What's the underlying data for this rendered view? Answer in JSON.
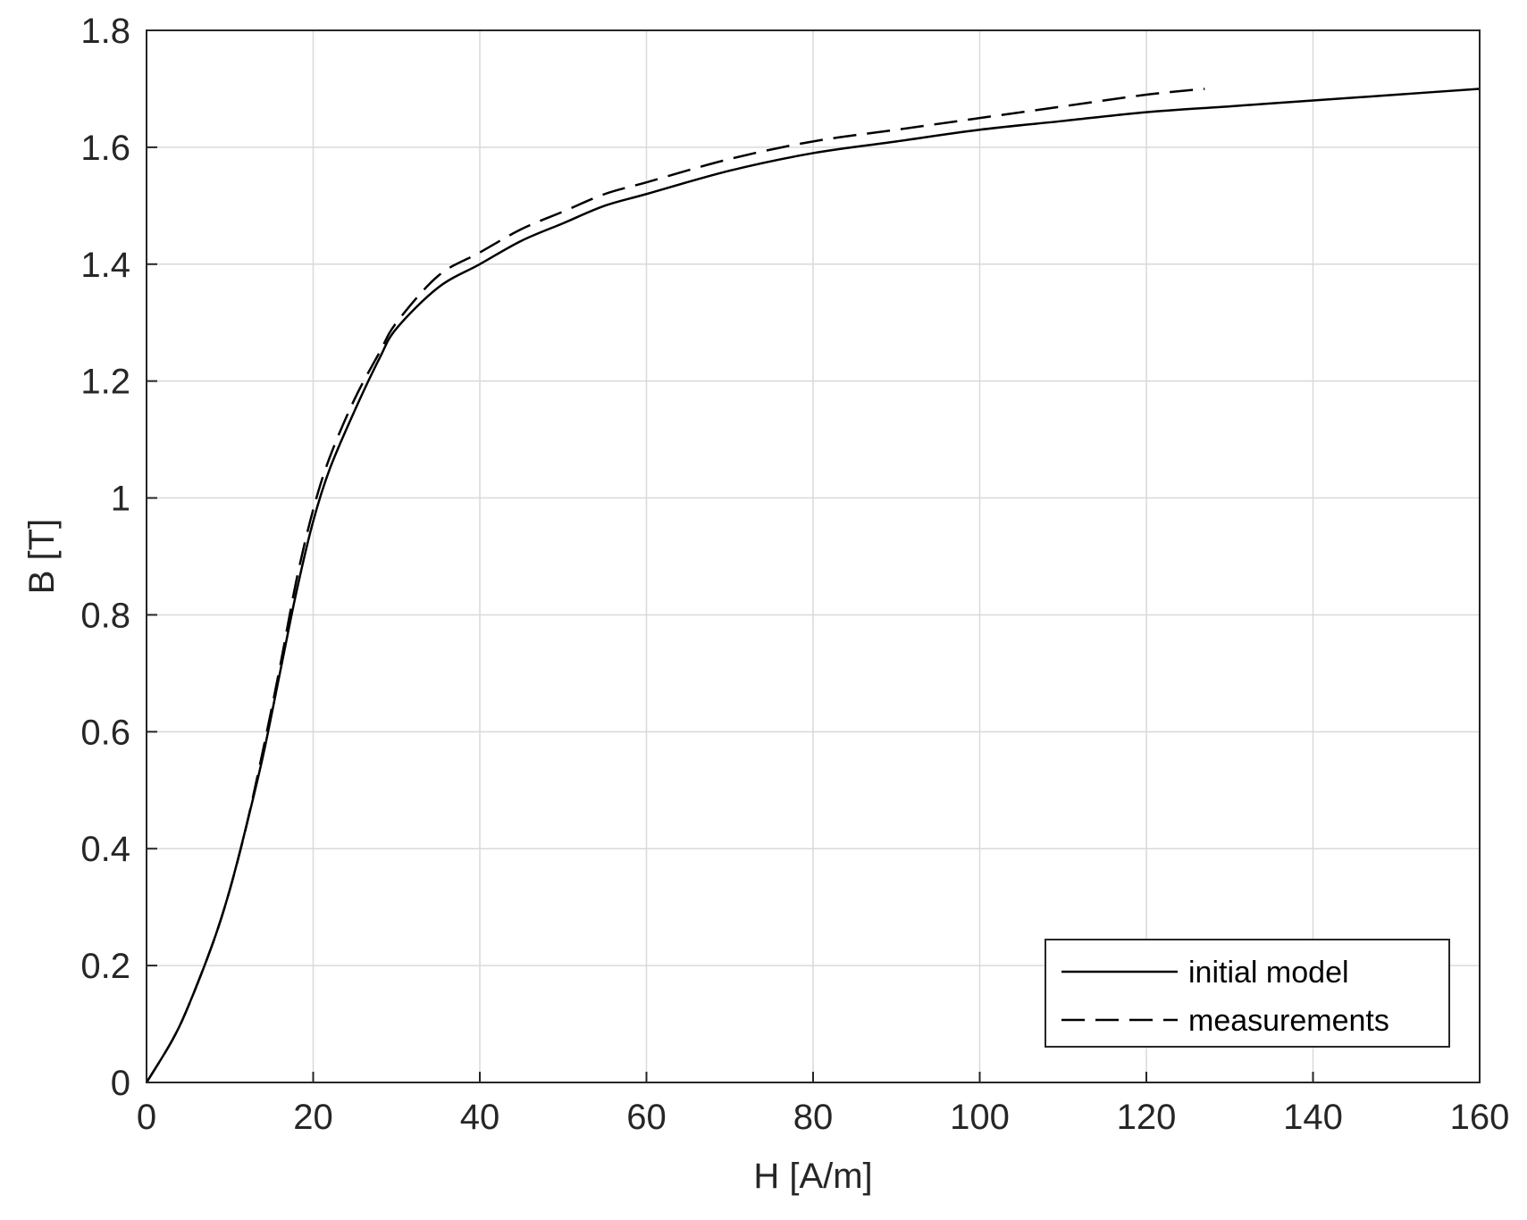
{
  "chart_data": {
    "type": "line",
    "xlabel": "H [A/m]",
    "ylabel": "B [T]",
    "xlim": [
      0,
      160
    ],
    "ylim": [
      0,
      1.8
    ],
    "xticks": [
      "0",
      "20",
      "40",
      "60",
      "80",
      "100",
      "120",
      "140",
      "160"
    ],
    "yticks": [
      "0",
      "0.2",
      "0.4",
      "0.6",
      "0.8",
      "1",
      "1.2",
      "1.4",
      "1.6",
      "1.8"
    ],
    "grid": true,
    "legend_position": "bottom-right",
    "colors": {
      "line": "#000000",
      "grid": "#d9d9d9",
      "axis": "#262626"
    },
    "series": [
      {
        "name": "initial model",
        "style": "solid",
        "x": [
          0,
          3,
          5,
          8,
          10,
          12,
          14,
          16,
          18,
          20,
          22,
          25,
          28,
          30,
          35,
          40,
          45,
          50,
          55,
          60,
          70,
          80,
          90,
          100,
          110,
          120,
          130,
          140,
          150,
          160
        ],
        "y": [
          0,
          0.07,
          0.13,
          0.24,
          0.33,
          0.44,
          0.56,
          0.7,
          0.84,
          0.96,
          1.05,
          1.15,
          1.24,
          1.29,
          1.36,
          1.4,
          1.44,
          1.47,
          1.5,
          1.52,
          1.56,
          1.59,
          1.61,
          1.63,
          1.645,
          1.66,
          1.67,
          1.68,
          1.69,
          1.7
        ]
      },
      {
        "name": "measurements",
        "style": "dashed",
        "x": [
          0,
          3,
          5,
          8,
          10,
          12,
          14,
          16,
          18,
          20,
          22,
          25,
          28,
          30,
          35,
          40,
          45,
          50,
          55,
          60,
          70,
          80,
          90,
          100,
          110,
          120,
          127
        ],
        "y": [
          0,
          0.07,
          0.13,
          0.24,
          0.33,
          0.44,
          0.57,
          0.71,
          0.86,
          0.98,
          1.07,
          1.17,
          1.25,
          1.3,
          1.38,
          1.42,
          1.46,
          1.49,
          1.52,
          1.54,
          1.58,
          1.61,
          1.63,
          1.65,
          1.67,
          1.69,
          1.7
        ]
      }
    ]
  }
}
